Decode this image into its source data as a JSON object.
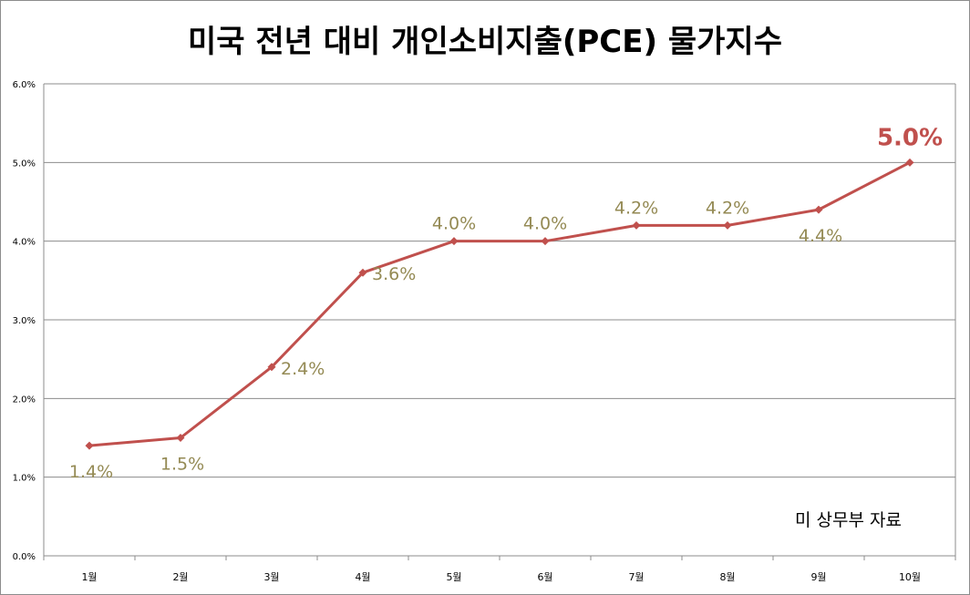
{
  "chart_data": {
    "type": "line",
    "title": "미국 전년 대비 개인소비지출(PCE) 물가지수",
    "categories": [
      "1월",
      "2월",
      "3월",
      "4월",
      "5월",
      "6월",
      "7월",
      "8월",
      "9월",
      "10월"
    ],
    "series": [
      {
        "values": [
          1.4,
          1.5,
          2.4,
          3.6,
          4.0,
          4.0,
          4.2,
          4.2,
          4.4,
          5.0
        ]
      }
    ],
    "data_labels": [
      "1.4%",
      "1.5%",
      "2.4%",
      "3.6%",
      "4.0%",
      "4.0%",
      "4.2%",
      "4.2%",
      "4.4%",
      "5.0%"
    ],
    "y_ticks": [
      "0.0%",
      "1.0%",
      "2.0%",
      "3.0%",
      "4.0%",
      "5.0%",
      "6.0%"
    ],
    "ylim": [
      0,
      6
    ],
    "grid": true,
    "legend": "none",
    "annotation": "미 상무부 자료",
    "colors": {
      "line": "#c0504d",
      "data_label": "#948a54",
      "highlight_label": "#c0504d",
      "grid": "#8c8c8c"
    }
  }
}
